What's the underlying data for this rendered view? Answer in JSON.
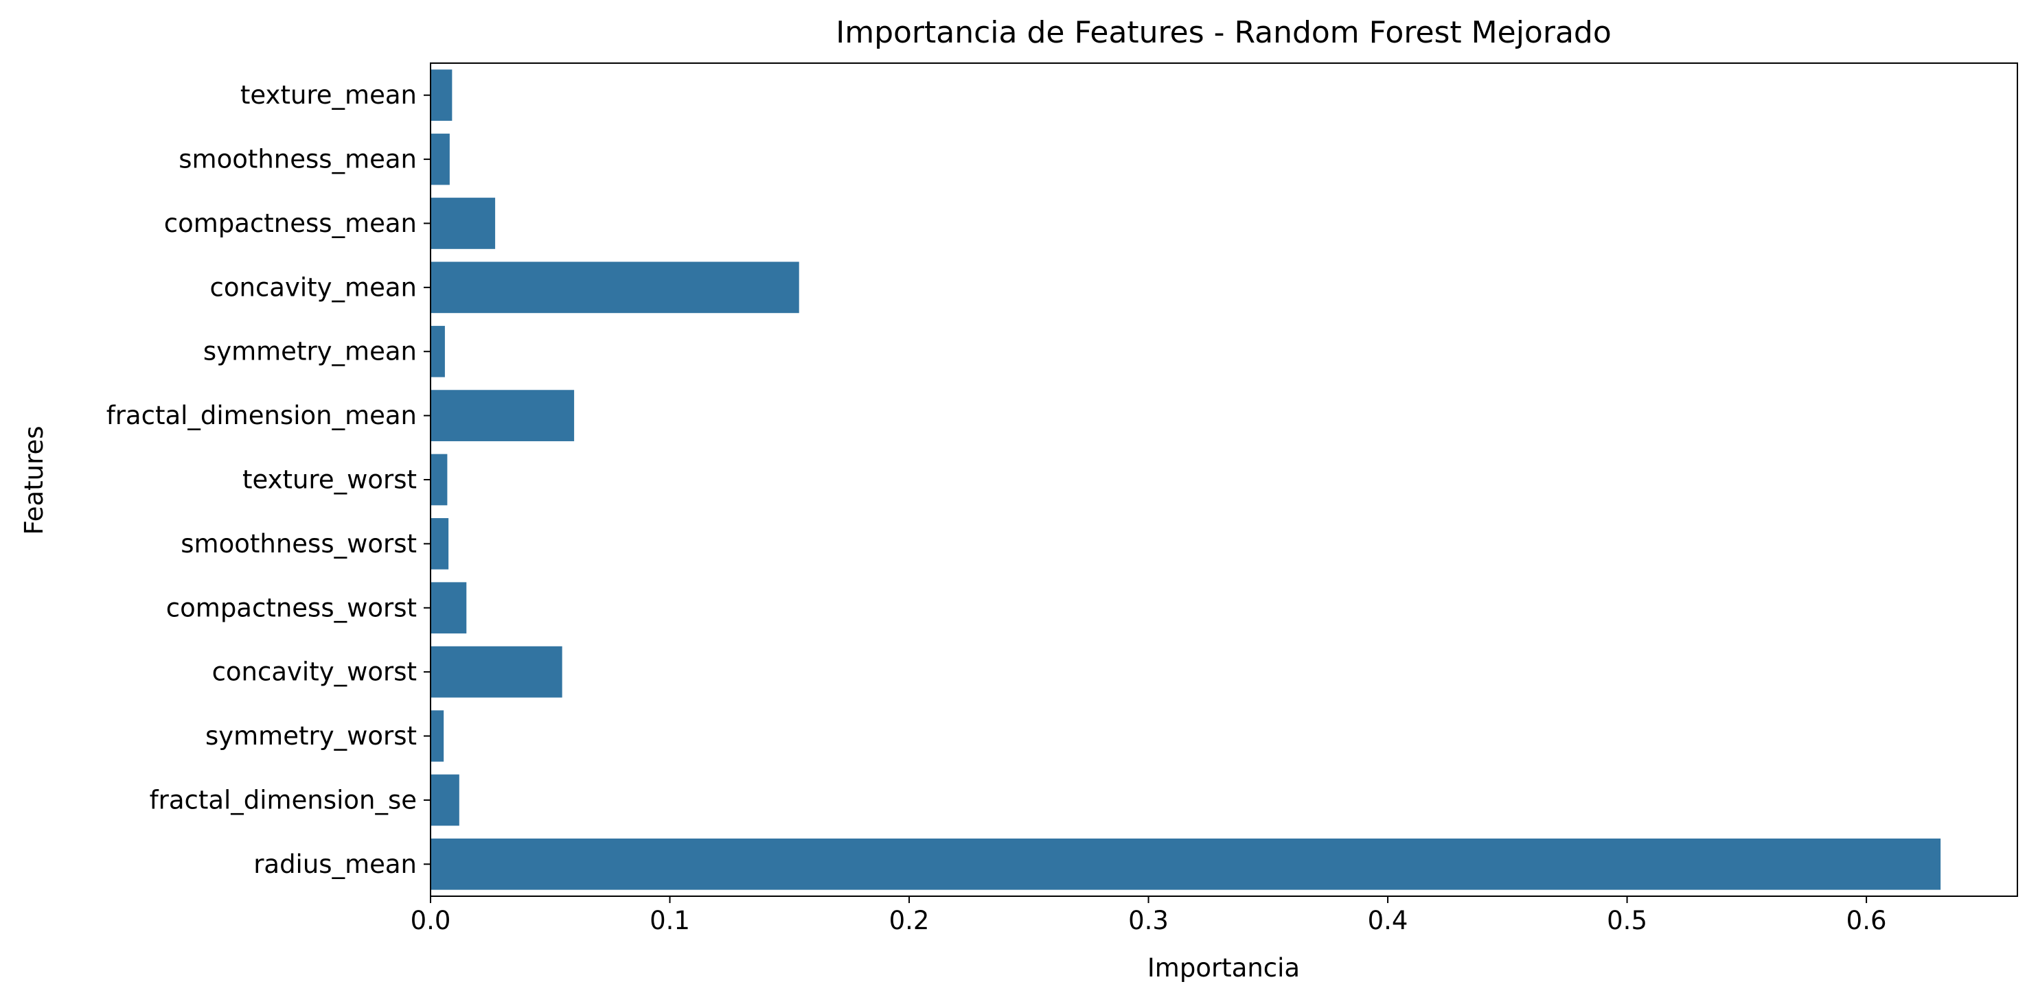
{
  "chart_data": {
    "type": "bar",
    "orientation": "horizontal",
    "title": "Importancia de Features - Random Forest Mejorado",
    "xlabel": "Importancia",
    "ylabel": "Features",
    "categories": [
      "texture_mean",
      "smoothness_mean",
      "compactness_mean",
      "concavity_mean",
      "symmetry_mean",
      "fractal_dimension_mean",
      "texture_worst",
      "smoothness_worst",
      "compactness_worst",
      "concavity_worst",
      "symmetry_worst",
      "fractal_dimension_se",
      "radius_mean"
    ],
    "values": [
      0.009,
      0.008,
      0.027,
      0.154,
      0.006,
      0.06,
      0.007,
      0.0075,
      0.015,
      0.055,
      0.0055,
      0.012,
      0.631
    ],
    "xlim": [
      0,
      0.6631
    ],
    "xticks": [
      "0.0",
      "0.1",
      "0.2",
      "0.3",
      "0.4",
      "0.5",
      "0.6"
    ],
    "grid": false,
    "legend": "none",
    "bar_color": "#3274a1"
  }
}
